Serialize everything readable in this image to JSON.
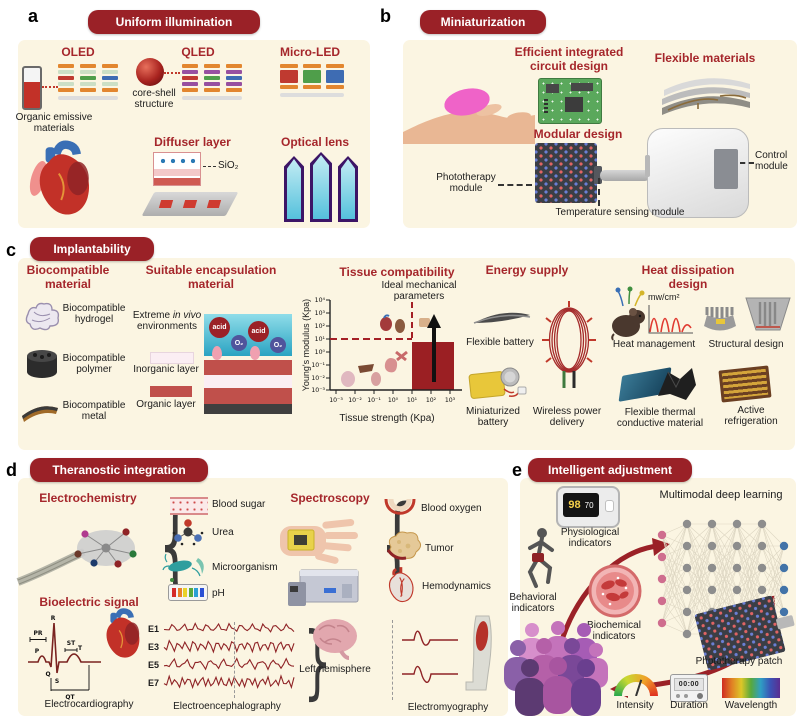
{
  "colors": {
    "pill_red": "#9a2127",
    "accent_red": "#a5262b",
    "panel_cream": "#fbf5e2",
    "region_red": "#9b1f23"
  },
  "a": {
    "letter": "a",
    "header": "Uniform illumination",
    "oled": "OLED",
    "qled": "QLED",
    "micro_led": "Micro-LED",
    "core_shell": "core-shell structure",
    "organic_emissive": "Organic emissive materials",
    "diffuser": "Diffuser layer",
    "sio2": "SiO₂",
    "optical_lens": "Optical lens"
  },
  "b": {
    "letter": "b",
    "header": "Miniaturization",
    "circuit": "Efficient integrated circuit design",
    "flexible_materials": "Flexible materials",
    "modular": "Modular design",
    "phototherapy_module": "Phototherapy module",
    "temperature_module": "Temperature sensing module",
    "control_module": "Control module"
  },
  "c": {
    "letter": "c",
    "header": "Implantability",
    "biocompatible_material": "Biocompatible material",
    "hydrogel": "Biocompatible hydrogel",
    "polymer": "Biocompatible polymer",
    "metal": "Biocompatible metal",
    "encapsulation": "Suitable encapsulation material",
    "extreme_pre": "Extreme",
    "extreme_italic": "in vivo",
    "extreme_post": "environments",
    "acid": "acid",
    "o2": "O₂",
    "inorganic_layer": "Inorganic layer",
    "organic_layer": "Organic layer",
    "energy_supply": "Energy supply",
    "flexible_battery": "Flexible battery",
    "miniaturized_battery": "Miniaturized battery",
    "wireless_power": "Wireless power delivery",
    "heat_dissipation": "Heat dissipation design",
    "mw_cm2": "mw/cm²",
    "heat_management": "Heat management",
    "structural_design": "Structural design",
    "flexible_thermal": "Flexible thermal conductive material",
    "active_refrigeration": "Active refrigeration"
  },
  "chart_data": {
    "type": "scatter",
    "title": "Tissue compatibility",
    "annotation": "Ideal mechanical parameters",
    "xlabel": "Tissue strength (Kpa)",
    "ylabel": "Young's modulus (Kpa)",
    "x_ticks": [
      "10⁻³",
      "10⁻²",
      "10⁻¹",
      "10⁰",
      "10¹",
      "10²",
      "10³"
    ],
    "y_ticks": [
      "10⁴",
      "10³",
      "10²",
      "10¹",
      "10⁰",
      "10⁻¹",
      "10⁻²",
      "10⁻³"
    ],
    "x_range_log10": [
      -3,
      3
    ],
    "y_range_log10": [
      -3,
      4
    ],
    "grid": false,
    "dashed_threshold_young_modulus": "10¹",
    "dashed_threshold_tissue_strength": "10¹",
    "ideal_region_log10": {
      "x": [
        1,
        3
      ],
      "y": [
        -3,
        1
      ]
    },
    "organ_markers": [
      {
        "organ": "heart",
        "x_log10": -0.3,
        "y_log10": 2.1
      },
      {
        "organ": "kidney",
        "x_log10": 0.4,
        "y_log10": 2.0
      },
      {
        "organ": "skin",
        "x_log10": 1.6,
        "y_log10": 2.1
      },
      {
        "organ": "muscle",
        "x_log10": 0.4,
        "y_log10": -0.4
      },
      {
        "organ": "stomach",
        "x_log10": 0.1,
        "y_log10": -0.9
      },
      {
        "organ": "liver",
        "x_log10": -1.4,
        "y_log10": -1.3
      },
      {
        "organ": "lung",
        "x_log10": -0.9,
        "y_log10": -1.9
      },
      {
        "organ": "spleen",
        "x_log10": -2.4,
        "y_log10": -1.9
      }
    ],
    "annotation_arrow": "upward arrow inside ideal region"
  },
  "d": {
    "letter": "d",
    "header": "Theranostic integration",
    "electrochemistry": "Electrochemistry",
    "blood_sugar": "Blood sugar",
    "urea": "Urea",
    "microorganism": "Microorganism",
    "ph": "pH",
    "spectroscopy": "Spectroscopy",
    "blood_oxygen": "Blood oxygen",
    "tumor": "Tumor",
    "hemodynamics": "Hemodynamics",
    "bioelectric": "Bioelectric signal",
    "ecg": {
      "p": "P",
      "q": "Q",
      "r": "R",
      "s": "S",
      "t": "T",
      "pr": "PR",
      "st": "ST",
      "qt": "QT"
    },
    "electrocardiography": "Electrocardiography",
    "eeg_channels": [
      "E1",
      "E3",
      "E5",
      "E7"
    ],
    "left_hemisphere": "Left hemisphere",
    "electroencephalography": "Electroencephalography",
    "electromyography": "Electromyography"
  },
  "e": {
    "letter": "e",
    "header": "Intelligent adjustment",
    "physiological": "Physiological indicators",
    "oximeter": {
      "spo2": "98",
      "pr": "70"
    },
    "deep_learning": "Multimodal deep learning",
    "behavioral": "Behavioral indicators",
    "biochemical": "Biochemical indicators",
    "phototherapy_patch": "Phototherapy patch",
    "intensity": "Intensity",
    "duration": "Duration",
    "duration_display": "00:00",
    "wavelength": "Wavelength"
  }
}
